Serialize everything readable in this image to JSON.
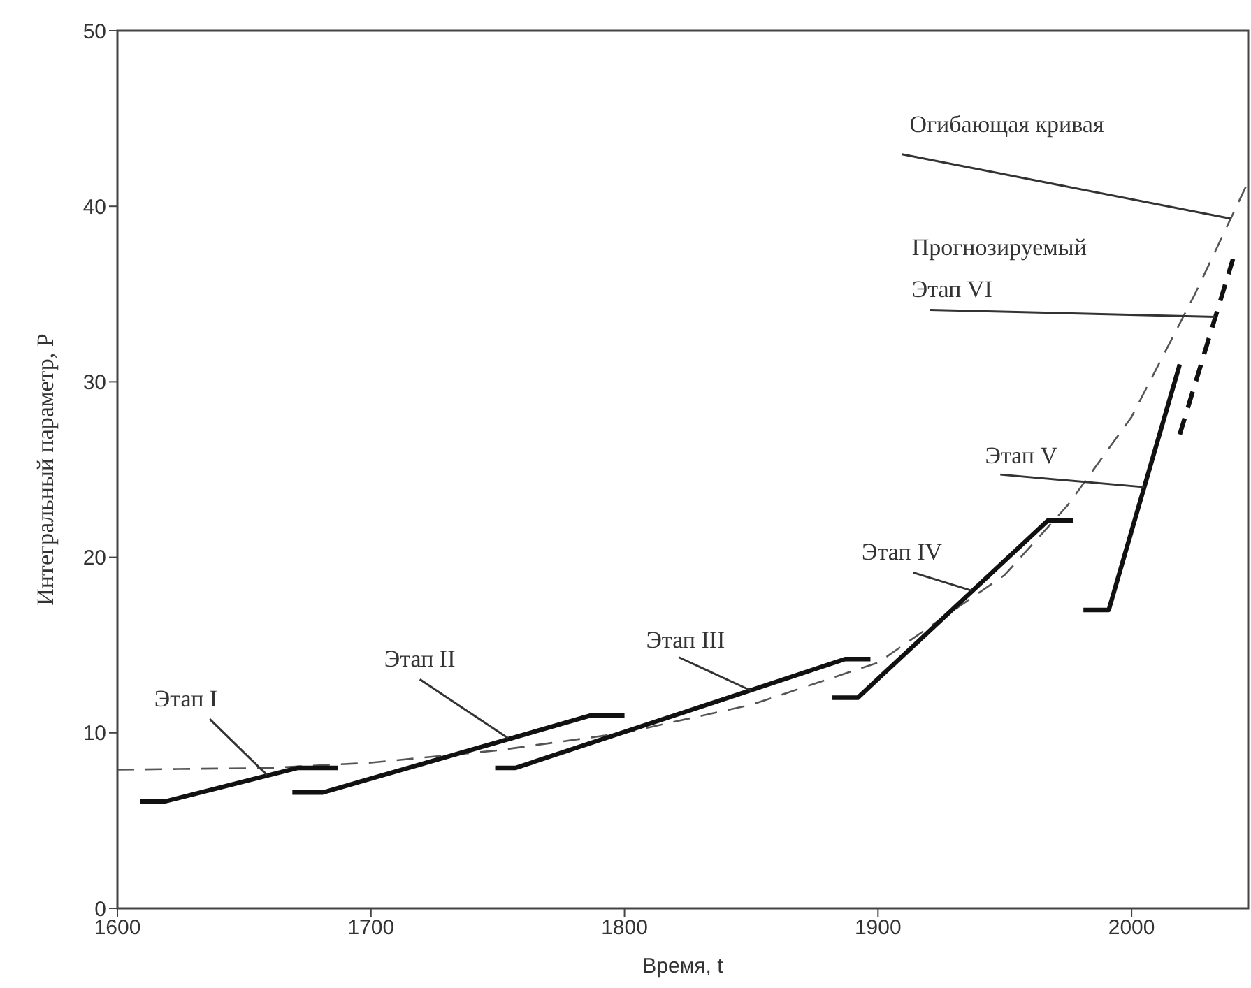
{
  "chart_data": {
    "type": "line",
    "xlabel": "Время, t",
    "ylabel": "Интегральный параметр, P",
    "xlim": [
      1600,
      2046
    ],
    "xticks": [
      1600,
      1700,
      1800,
      1900,
      2000
    ],
    "ylim": [
      0,
      50
    ],
    "yticks": [
      0,
      10,
      20,
      30,
      40,
      50
    ],
    "marker": "none",
    "series": [
      {
        "color": "#555555",
        "line_style": "dashed",
        "x": [
          1600,
          1660,
          1700,
          1750,
          1800,
          1850,
          1900,
          1950,
          1975,
          2000,
          2025,
          2046
        ],
        "values": [
          7.9,
          8.0,
          8.3,
          9.0,
          10.0,
          11.6,
          14.0,
          19.0,
          23.0,
          28.0,
          35.0,
          41.4
        ]
      },
      {
        "color": "#111111",
        "line_style": "solid",
        "x": [
          1609,
          1619,
          1671,
          1687
        ],
        "values": [
          6.1,
          6.1,
          8.0,
          8.0
        ]
      },
      {
        "color": "#111111",
        "line_style": "solid",
        "x": [
          1669,
          1681,
          1787,
          1800
        ],
        "values": [
          6.6,
          6.6,
          11.0,
          11.0
        ]
      },
      {
        "color": "#111111",
        "line_style": "solid",
        "x": [
          1749,
          1757,
          1887,
          1897
        ],
        "values": [
          8.0,
          8.0,
          14.2,
          14.2
        ]
      },
      {
        "color": "#111111",
        "line_style": "solid",
        "x": [
          1882,
          1892,
          1967,
          1977
        ],
        "values": [
          12.0,
          12.0,
          22.1,
          22.1
        ]
      },
      {
        "color": "#111111",
        "line_style": "solid",
        "x": [
          1981,
          1991,
          2019
        ],
        "values": [
          17.0,
          17.0,
          31.0
        ]
      },
      {
        "color": "#111111",
        "line_style": "dashed",
        "x": [
          2019,
          2040
        ],
        "values": [
          27.0,
          37.0
        ]
      }
    ],
    "annotations": [
      {
        "text": "Этап I",
        "x": 1659,
        "y": 7.6
      },
      {
        "text": "Этап II",
        "x": 1754,
        "y": 9.7
      },
      {
        "text": "Этап III",
        "x": 1850,
        "y": 12.4
      },
      {
        "text": "Этап IV",
        "x": 1937,
        "y": 18.1
      },
      {
        "text": "Этап V",
        "x": 2005,
        "y": 24
      },
      {
        "text": "Прогнозируемый\nЭтап VI",
        "x": 2033,
        "y": 33.7
      },
      {
        "text": "Огибающая кривая",
        "x": 2039,
        "y": 39.3
      }
    ]
  }
}
